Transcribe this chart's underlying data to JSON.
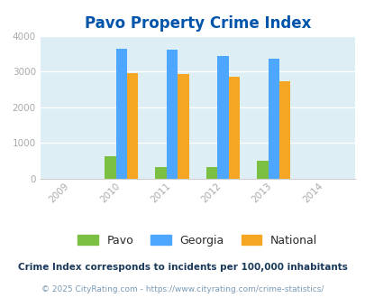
{
  "title": "Pavo Property Crime Index",
  "years": [
    2009,
    2010,
    2011,
    2012,
    2013,
    2014
  ],
  "data_years": [
    2010,
    2011,
    2012,
    2013
  ],
  "pavo": [
    620,
    340,
    340,
    510
  ],
  "georgia": [
    3640,
    3620,
    3430,
    3360
  ],
  "national": [
    2950,
    2920,
    2860,
    2730
  ],
  "pavo_color": "#7bc043",
  "georgia_color": "#4da6ff",
  "national_color": "#f5a623",
  "bg_color": "#ddeef4",
  "ylim": [
    0,
    4000
  ],
  "yticks": [
    0,
    1000,
    2000,
    3000,
    4000
  ],
  "bar_width": 0.22,
  "footnote1": "Crime Index corresponds to incidents per 100,000 inhabitants",
  "footnote2": "© 2025 CityRating.com - https://www.cityrating.com/crime-statistics/",
  "title_color": "#0055aa",
  "footnote1_color": "#1a3a5c",
  "footnote2_color": "#7a9ab5",
  "legend_text_color": "#2a2a2a",
  "tick_color": "#aaaaaa"
}
